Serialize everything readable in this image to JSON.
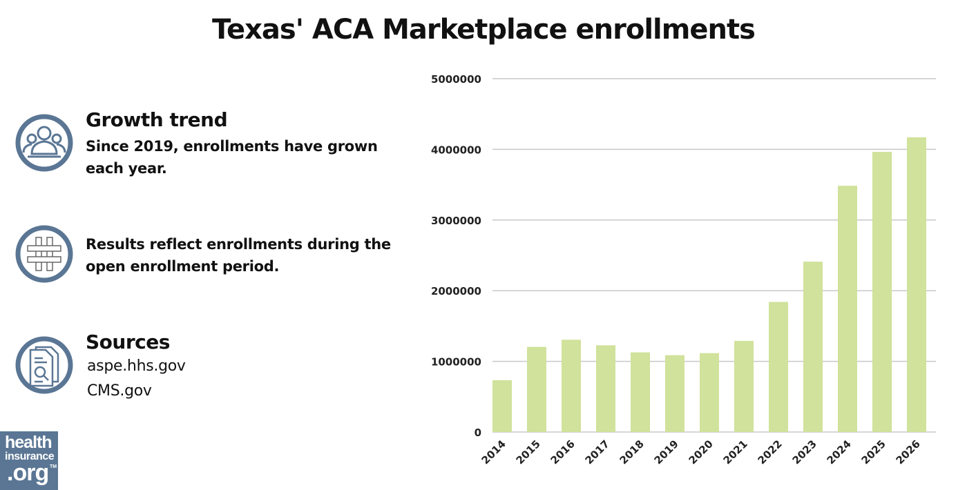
{
  "title": "Texas' ACA Marketplace enrollments",
  "info": [
    {
      "icon": "people-group-icon",
      "heading": "Growth trend",
      "text": "Since 2019, enrollments have grown each year."
    },
    {
      "icon": "hashtag-icon",
      "text": "Results reflect enrollments during the open enrollment period."
    },
    {
      "icon": "document-search-icon",
      "heading": "Sources",
      "sources": [
        "aspe.hhs.gov",
        "CMS.gov"
      ]
    }
  ],
  "logo": {
    "line1": "health",
    "line2": "insurance",
    "line3": ".org",
    "tm": "TM"
  },
  "colors": {
    "bar": "#d0e29b",
    "icon": "#5a7694",
    "grid": "#c8c8c8"
  },
  "chart_data": {
    "type": "bar",
    "title": "Texas' ACA Marketplace enrollments",
    "categories": [
      "2014",
      "2015",
      "2016",
      "2017",
      "2018",
      "2019",
      "2020",
      "2021",
      "2022",
      "2023",
      "2024",
      "2025",
      "2026"
    ],
    "values": [
      733757,
      1205174,
      1306208,
      1227290,
      1126838,
      1087240,
      1116293,
      1290224,
      1840947,
      2410810,
      3484632,
      3964535,
      4170000
    ],
    "ylim": [
      0,
      5000000
    ],
    "yticks": [
      "0",
      "1000000",
      "2000000",
      "3000000",
      "4000000",
      "5000000"
    ],
    "grid": true,
    "xlabel": "",
    "ylabel": ""
  }
}
